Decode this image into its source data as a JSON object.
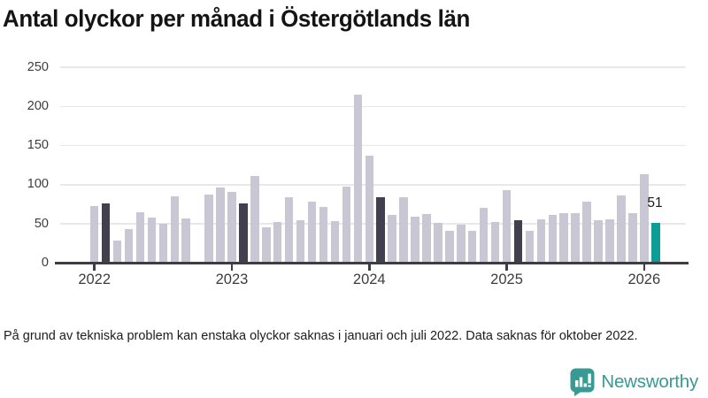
{
  "title": "Antal olyckor per månad i Östergötlands län",
  "footnote": "På grund av tekniska problem kan enstaka olyckor saknas i januari och juli 2022. Data saknas för oktober 2022.",
  "brand": {
    "name": "Newsworthy",
    "color": "#379a93"
  },
  "colors": {
    "bar_default": "#c9c7d3",
    "bar_highlight": "#423f4e",
    "bar_accent": "#0b9d96",
    "grid": "#e8e8eb",
    "axis": "#3d3d44"
  },
  "chart_data": {
    "type": "bar",
    "title": "Antal olyckor per månad i Östergötlands län",
    "xlabel": "",
    "ylabel": "",
    "ylim": [
      0,
      250
    ],
    "y_ticks": [
      0,
      50,
      100,
      150,
      200,
      250
    ],
    "x_tick_labels": [
      "2022",
      "2023",
      "2024",
      "2025",
      "2026"
    ],
    "x_range": "2022-01 till 2026-02",
    "grid": "horizontal",
    "missing_months": [
      "2022-10"
    ],
    "highlight_month_index": 1,
    "annotation": "51",
    "series_by_year": [
      {
        "year": "2022",
        "values": [
          73,
          76,
          29,
          44,
          65,
          58,
          50,
          85,
          57,
          null,
          87,
          97
        ]
      },
      {
        "year": "2023",
        "values": [
          91,
          76,
          111,
          46,
          53,
          84,
          55,
          78,
          72,
          54,
          98,
          215
        ]
      },
      {
        "year": "2024",
        "values": [
          137,
          84,
          61,
          84,
          59,
          63,
          51,
          41,
          49,
          41,
          70,
          53
        ]
      },
      {
        "year": "2025",
        "values": [
          93,
          55,
          41,
          56,
          62,
          64,
          64,
          78,
          55,
          56,
          86,
          64
        ]
      },
      {
        "year": "2026",
        "values": [
          113,
          51
        ]
      }
    ]
  }
}
